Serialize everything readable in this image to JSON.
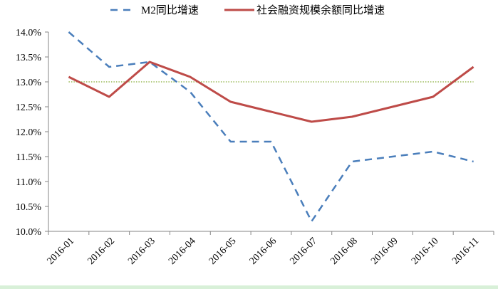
{
  "chart_data": {
    "type": "line",
    "title": "",
    "xlabel": "",
    "ylabel": "",
    "categories": [
      "2016-01",
      "2016-02",
      "2016-03",
      "2016-04",
      "2016-05",
      "2016-06",
      "2016-07",
      "2016-08",
      "2016-09",
      "2016-10",
      "2016-11"
    ],
    "ylim": [
      10.0,
      14.0
    ],
    "yticks": [
      "10.0%",
      "10.5%",
      "11.0%",
      "11.5%",
      "12.0%",
      "12.5%",
      "13.0%",
      "13.5%",
      "14.0%"
    ],
    "grid": false,
    "legend_position": "top",
    "series": [
      {
        "name": "M2同比增速",
        "style": "dashed",
        "color": "#4a7ebb",
        "values": [
          14.0,
          13.3,
          13.4,
          12.8,
          11.8,
          11.8,
          10.2,
          11.4,
          11.5,
          11.6,
          11.4
        ]
      },
      {
        "name": "社会融资规模余额同比增速",
        "style": "solid",
        "color": "#be4b48",
        "values": [
          13.1,
          12.7,
          13.4,
          13.1,
          12.6,
          12.4,
          12.2,
          12.3,
          12.5,
          12.7,
          13.3
        ]
      }
    ],
    "reference_line": {
      "value": 13.0,
      "style": "dotted",
      "color": "#9bbb59"
    }
  }
}
